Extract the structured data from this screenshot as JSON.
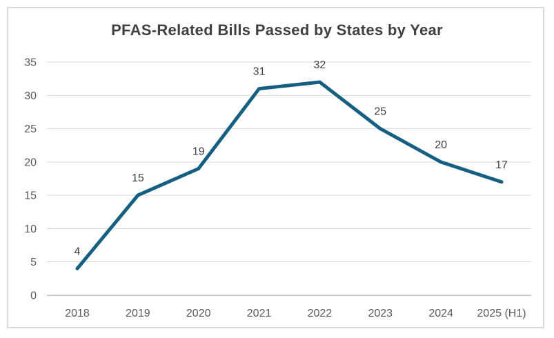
{
  "chart_data": {
    "type": "line",
    "title": "PFAS-Related Bills Passed by States by Year",
    "categories": [
      "2018",
      "2019",
      "2020",
      "2021",
      "2022",
      "2023",
      "2024",
      "2025 (H1)"
    ],
    "values": [
      4,
      15,
      19,
      31,
      32,
      25,
      20,
      17
    ],
    "xlabel": "",
    "ylabel": "",
    "ylim": [
      0,
      35
    ],
    "ytick_step": 5,
    "ytick_labels": [
      "0",
      "5",
      "10",
      "15",
      "20",
      "25",
      "30",
      "35"
    ],
    "grid": true,
    "legend": "none",
    "show_data_labels": true,
    "colors": {
      "line": "#156082",
      "title_text": "#404040",
      "data_label_text": "#404040",
      "tick_label_text": "#595959",
      "gridline": "#d9d9d9",
      "zero_axis_line": "#bfbfbf",
      "frame_border": "#d9d9d9",
      "background": "#ffffff"
    }
  }
}
